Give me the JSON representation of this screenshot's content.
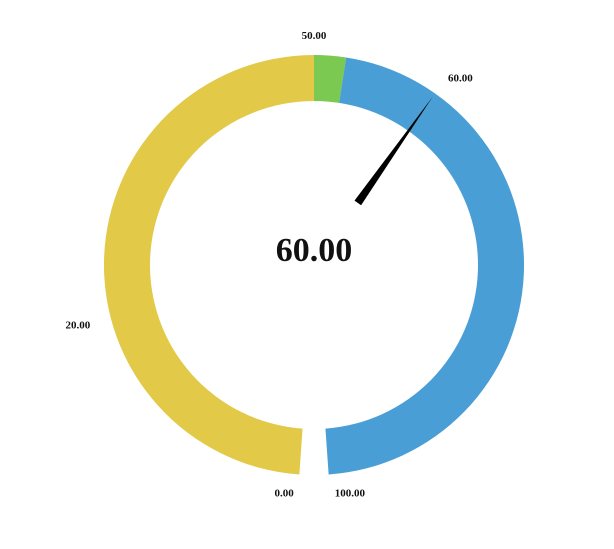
{
  "chart_data": {
    "type": "gauge",
    "value": 60,
    "value_label": "60.00",
    "min": 0,
    "max": 100,
    "bands": [
      {
        "from": 0,
        "to": 50,
        "color": "#E2C947"
      },
      {
        "from": 50,
        "to": 52.5,
        "color": "#7BC950"
      },
      {
        "from": 52.5,
        "to": 100,
        "color": "#4A9ED6"
      }
    ],
    "tick_labels": [
      {
        "value": 0,
        "text": "0.00"
      },
      {
        "value": 20,
        "text": "20.00"
      },
      {
        "value": 50,
        "text": "50.00"
      },
      {
        "value": 60,
        "text": "60.00"
      },
      {
        "value": 100,
        "text": "100.00"
      }
    ],
    "needle_color": "#000000"
  }
}
